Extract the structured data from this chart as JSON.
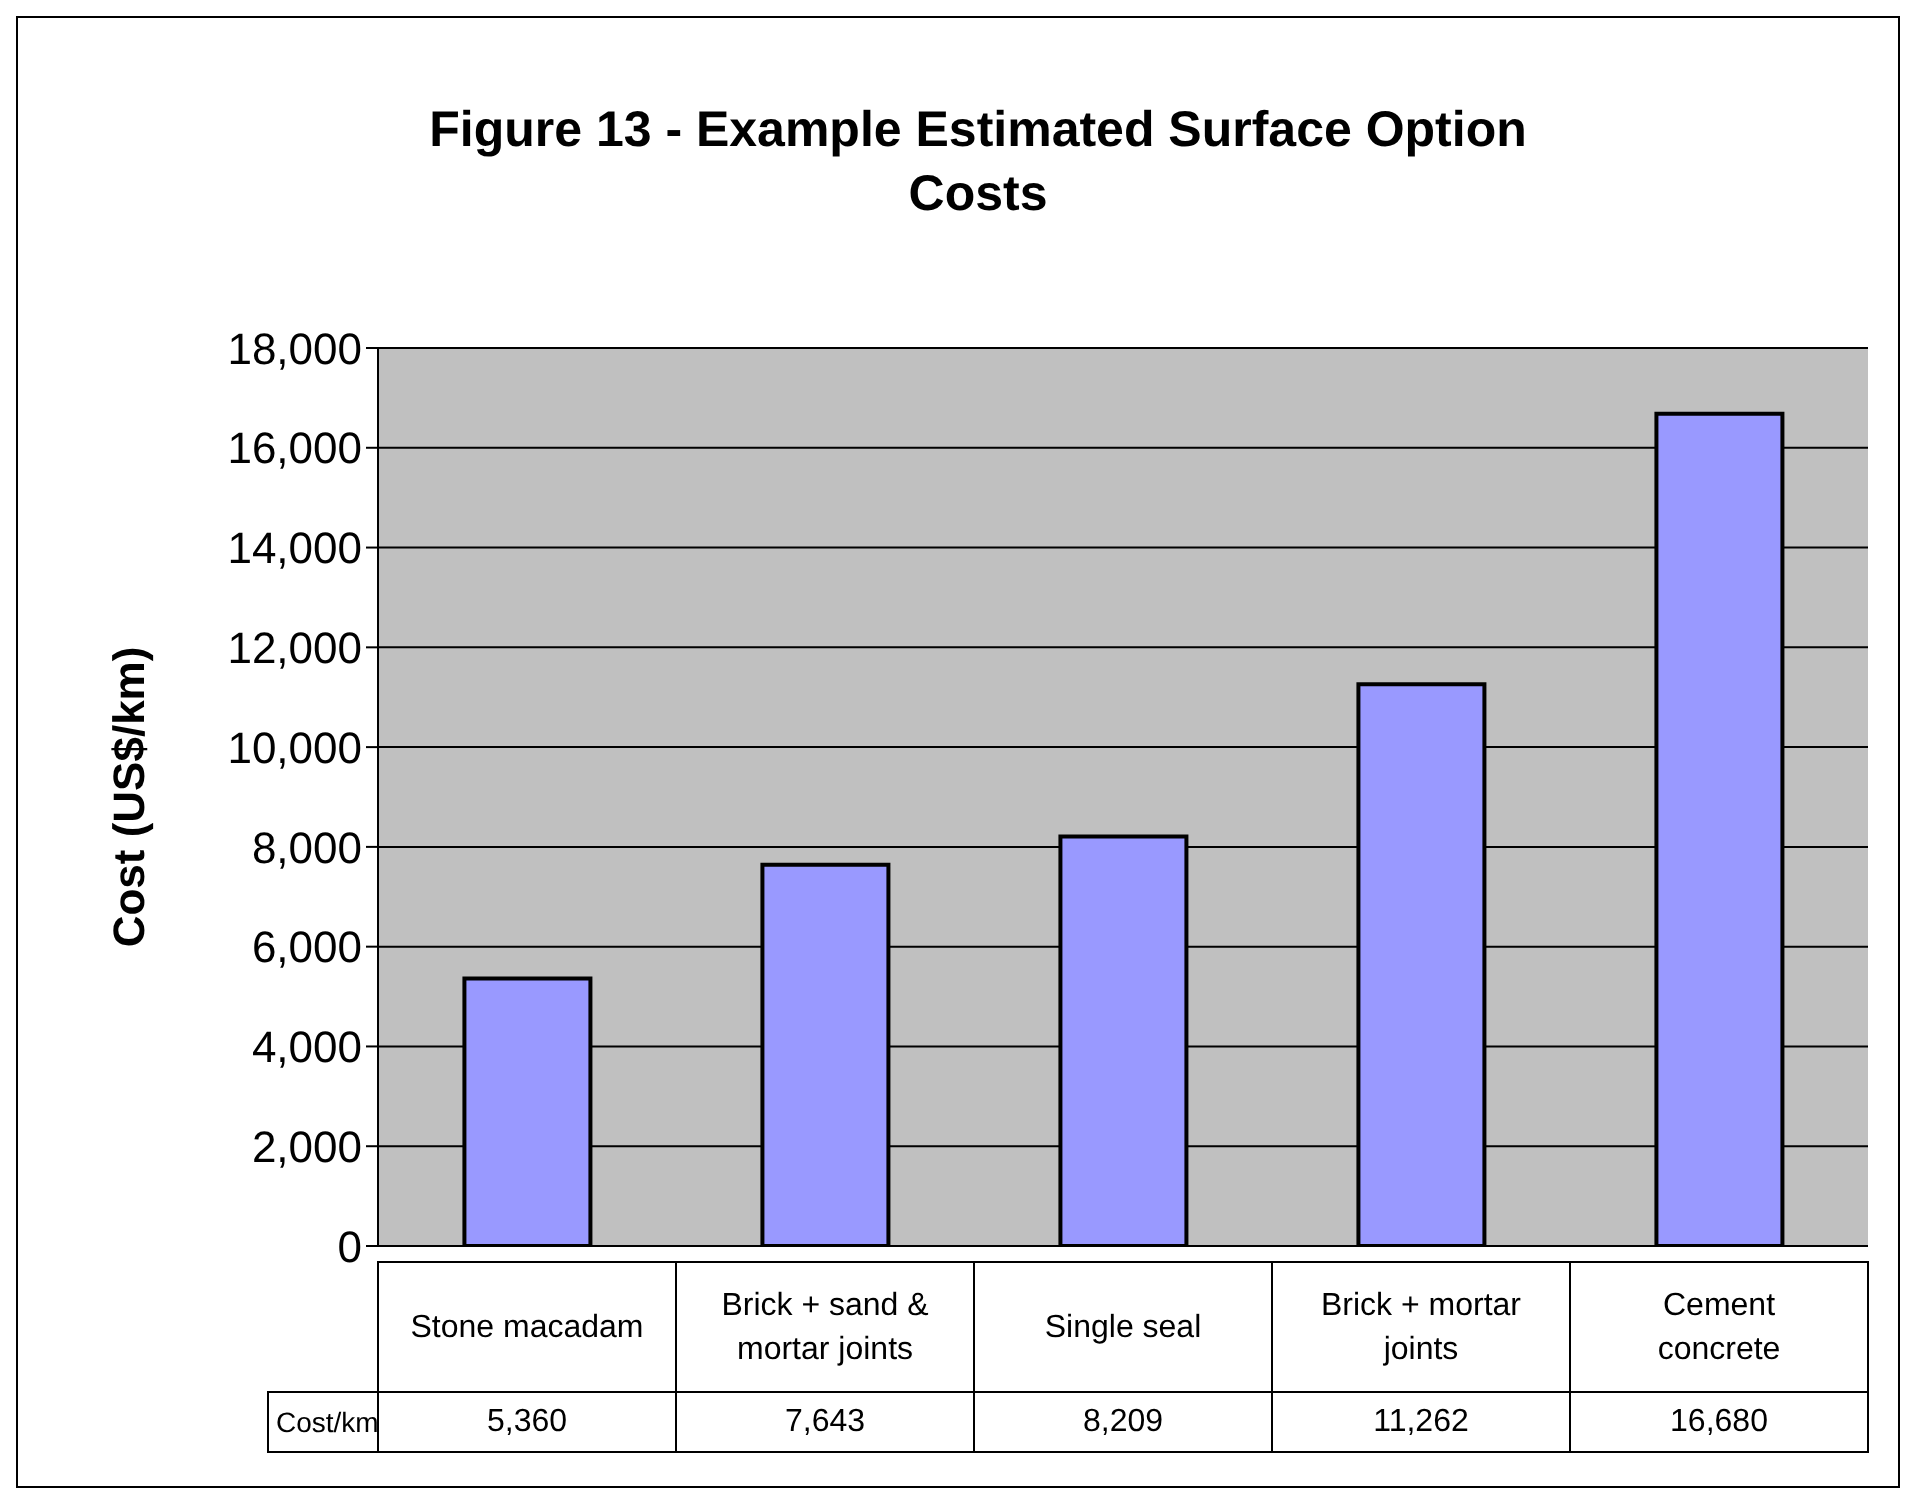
{
  "chart_data": {
    "type": "bar",
    "title": "Figure 13 - Example Estimated Surface Option Costs",
    "ylabel": "Cost (US$/km)",
    "categories": [
      "Stone macadam",
      "Brick + sand & mortar joints",
      "Single seal",
      "Brick + mortar joints",
      "Cement concrete"
    ],
    "series": [
      {
        "name": "Cost/km",
        "color": "#9999ff",
        "values": [
          5360,
          7643,
          8209,
          11262,
          16680
        ],
        "value_labels": [
          "5,360",
          "7,643",
          "8,209",
          "11,262",
          "16,680"
        ]
      }
    ],
    "ylim": [
      0,
      18000
    ],
    "yticks": [
      {
        "value": 0,
        "label": "0"
      },
      {
        "value": 2000,
        "label": "2,000"
      },
      {
        "value": 4000,
        "label": "4,000"
      },
      {
        "value": 6000,
        "label": "6,000"
      },
      {
        "value": 8000,
        "label": "8,000"
      },
      {
        "value": 10000,
        "label": "10,000"
      },
      {
        "value": 12000,
        "label": "12,000"
      },
      {
        "value": 14000,
        "label": "14,000"
      },
      {
        "value": 16000,
        "label": "16,000"
      },
      {
        "value": 18000,
        "label": "18,000"
      }
    ],
    "grid": "y",
    "legend": false
  }
}
